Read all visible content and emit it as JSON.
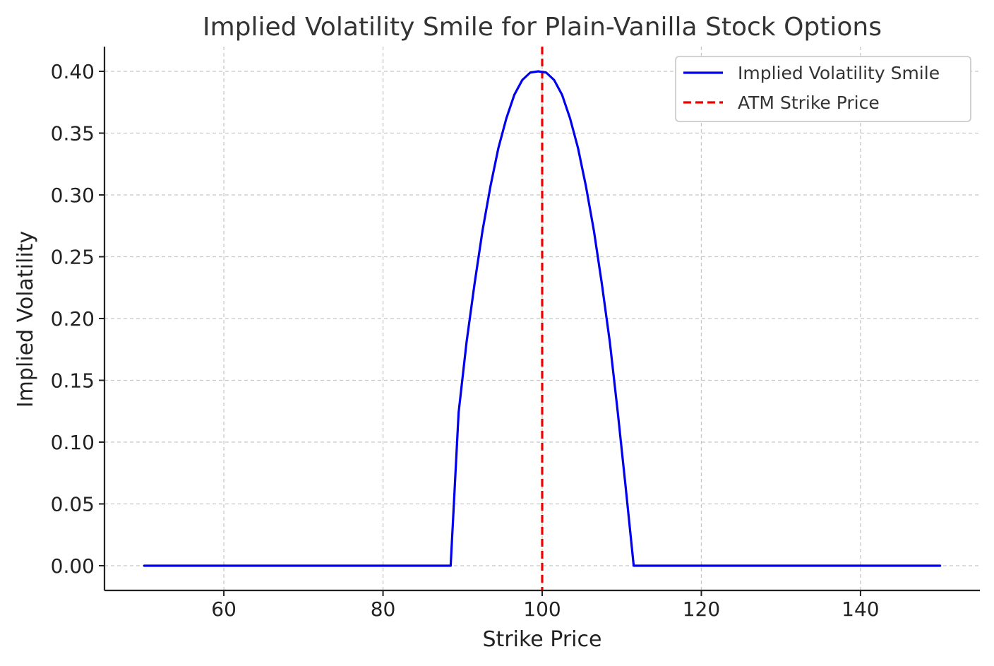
{
  "chart_data": {
    "type": "line",
    "title": "Implied Volatility Smile for Plain-Vanilla Stock Options",
    "xlabel": "Strike Price",
    "ylabel": "Implied Volatility",
    "xlim": [
      45,
      155
    ],
    "ylim": [
      -0.02,
      0.42
    ],
    "x_ticks": [
      60,
      80,
      100,
      120,
      140
    ],
    "x_tick_labels": [
      "60",
      "80",
      "100",
      "120",
      "140"
    ],
    "y_ticks": [
      0.0,
      0.05,
      0.1,
      0.15,
      0.2,
      0.25,
      0.3,
      0.35,
      0.4
    ],
    "y_tick_labels": [
      "0.00",
      "0.05",
      "0.10",
      "0.15",
      "0.20",
      "0.25",
      "0.30",
      "0.35",
      "0.40"
    ],
    "grid": true,
    "legend_position": "top-right",
    "series": [
      {
        "name": "Implied Volatility Smile",
        "color": "#0000ee",
        "style": "solid",
        "x": [
          50,
          88.5,
          89.5,
          90.5,
          91.5,
          92.5,
          93.5,
          94.5,
          95.5,
          96.5,
          97.5,
          98.5,
          99.5,
          100.5,
          101.5,
          102.5,
          103.5,
          104.5,
          105.5,
          106.5,
          107.5,
          108.5,
          109.5,
          110.5,
          111.5,
          150
        ],
        "y": [
          0.0,
          0.0,
          0.124,
          0.181,
          0.228,
          0.271,
          0.307,
          0.338,
          0.362,
          0.381,
          0.393,
          0.399,
          0.4,
          0.399,
          0.393,
          0.381,
          0.362,
          0.338,
          0.307,
          0.271,
          0.228,
          0.181,
          0.124,
          0.063,
          0.0,
          0.0
        ]
      },
      {
        "name": "ATM Strike Price",
        "color": "#ee0000",
        "style": "dashed",
        "type": "vline",
        "x_value": 100
      }
    ]
  }
}
